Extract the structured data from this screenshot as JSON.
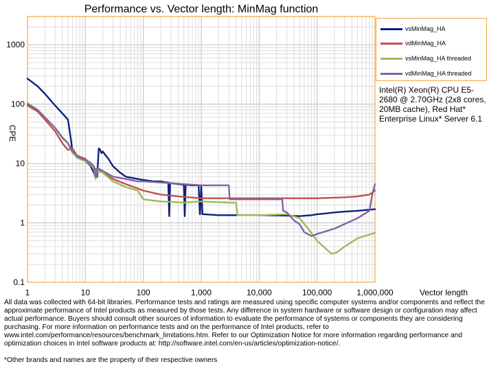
{
  "chart_data": {
    "type": "line",
    "title": "Performance vs. Vector length: MinMag function",
    "xlabel": "Vector length",
    "ylabel": "CPE",
    "xscale": "log",
    "yscale": "log",
    "xlim": [
      1,
      1000000
    ],
    "ylim": [
      0.1,
      3000
    ],
    "grid": true,
    "legend_position": "top-right",
    "x_ticks": [
      "1",
      "10",
      "100",
      "1,000",
      "10,000",
      "100,000",
      "1,000,000"
    ],
    "y_ticks": [
      "0.1",
      "1",
      "10",
      "100",
      "1000"
    ],
    "series": [
      {
        "name": "vsMinMag_HA",
        "color": "#0d1e7e",
        "points": [
          [
            1,
            270
          ],
          [
            1.5,
            200
          ],
          [
            2,
            150
          ],
          [
            3,
            95
          ],
          [
            4,
            70
          ],
          [
            5,
            55
          ],
          [
            5.5,
            30
          ],
          [
            6,
            16
          ],
          [
            7,
            13
          ],
          [
            8,
            12
          ],
          [
            9,
            11.5
          ],
          [
            10,
            11
          ],
          [
            12,
            9.5
          ],
          [
            14,
            7
          ],
          [
            15,
            5.8
          ],
          [
            16,
            6
          ],
          [
            17,
            18
          ],
          [
            18,
            17
          ],
          [
            19,
            15
          ],
          [
            20,
            16
          ],
          [
            22,
            14
          ],
          [
            25,
            12
          ],
          [
            30,
            9
          ],
          [
            40,
            7
          ],
          [
            50,
            6
          ],
          [
            60,
            5.8
          ],
          [
            80,
            5.5
          ],
          [
            100,
            5.3
          ],
          [
            150,
            5
          ],
          [
            200,
            5
          ],
          [
            250,
            4.8
          ],
          [
            270,
            4.8
          ],
          [
            280,
            1.3
          ],
          [
            290,
            4.7
          ],
          [
            400,
            4.5
          ],
          [
            500,
            4.4
          ],
          [
            520,
            1.3
          ],
          [
            540,
            4.4
          ],
          [
            700,
            4.3
          ],
          [
            900,
            4.3
          ],
          [
            950,
            1.4
          ],
          [
            1000,
            4.2
          ],
          [
            1050,
            1.4
          ],
          [
            1100,
            1.4
          ],
          [
            2000,
            1.35
          ],
          [
            5000,
            1.35
          ],
          [
            10000,
            1.35
          ],
          [
            30000,
            1.33
          ],
          [
            50000,
            1.3
          ],
          [
            80000,
            1.35
          ],
          [
            100000,
            1.4
          ],
          [
            150000,
            1.45
          ],
          [
            200000,
            1.5
          ],
          [
            300000,
            1.55
          ],
          [
            500000,
            1.6
          ],
          [
            1000000,
            1.7
          ]
        ]
      },
      {
        "name": "vdMinMag_HA",
        "color": "#c0504d",
        "points": [
          [
            1,
            95
          ],
          [
            1.5,
            75
          ],
          [
            2,
            55
          ],
          [
            3,
            35
          ],
          [
            4,
            22
          ],
          [
            5,
            17
          ],
          [
            6,
            18
          ],
          [
            7,
            14
          ],
          [
            8,
            13
          ],
          [
            10,
            12
          ],
          [
            12,
            10
          ],
          [
            15,
            8
          ],
          [
            20,
            7
          ],
          [
            30,
            5.5
          ],
          [
            50,
            4.5
          ],
          [
            100,
            3.5
          ],
          [
            200,
            3
          ],
          [
            400,
            2.8
          ],
          [
            1000,
            2.6
          ],
          [
            3000,
            2.6
          ],
          [
            10000,
            2.6
          ],
          [
            30000,
            2.6
          ],
          [
            100000,
            2.6
          ],
          [
            300000,
            2.7
          ],
          [
            500000,
            2.8
          ],
          [
            800000,
            3
          ],
          [
            1000000,
            3.5
          ]
        ]
      },
      {
        "name": "vsMinMag_HA threaded",
        "color": "#9bbb59",
        "points": [
          [
            1,
            105
          ],
          [
            1.5,
            80
          ],
          [
            2,
            60
          ],
          [
            3,
            40
          ],
          [
            4,
            28
          ],
          [
            5,
            22
          ],
          [
            6,
            15
          ],
          [
            8,
            12
          ],
          [
            10,
            11
          ],
          [
            12,
            10
          ],
          [
            14,
            8
          ],
          [
            15,
            5.5
          ],
          [
            16,
            7.5
          ],
          [
            20,
            7
          ],
          [
            30,
            5
          ],
          [
            50,
            4
          ],
          [
            80,
            3.5
          ],
          [
            100,
            2.5
          ],
          [
            200,
            2.3
          ],
          [
            500,
            2.2
          ],
          [
            1000,
            2.3
          ],
          [
            3000,
            2.2
          ],
          [
            4000,
            2.2
          ],
          [
            4200,
            1.35
          ],
          [
            10000,
            1.35
          ],
          [
            30000,
            1.4
          ],
          [
            50000,
            1.2
          ],
          [
            70000,
            0.8
          ],
          [
            100000,
            0.5
          ],
          [
            150000,
            0.35
          ],
          [
            180000,
            0.3
          ],
          [
            220000,
            0.32
          ],
          [
            300000,
            0.4
          ],
          [
            500000,
            0.55
          ],
          [
            1000000,
            0.68
          ]
        ]
      },
      {
        "name": "vdMinMag_HA threaded",
        "color": "#8064a2",
        "points": [
          [
            1,
            100
          ],
          [
            1.5,
            80
          ],
          [
            2,
            60
          ],
          [
            3,
            40
          ],
          [
            4,
            27
          ],
          [
            5,
            22
          ],
          [
            6,
            16
          ],
          [
            8,
            12.5
          ],
          [
            10,
            11.5
          ],
          [
            12,
            10.5
          ],
          [
            14,
            9
          ],
          [
            15,
            6
          ],
          [
            16,
            8.5
          ],
          [
            20,
            7.5
          ],
          [
            30,
            6
          ],
          [
            50,
            5.5
          ],
          [
            80,
            5
          ],
          [
            100,
            5
          ],
          [
            200,
            4.8
          ],
          [
            500,
            4.5
          ],
          [
            1000,
            4.3
          ],
          [
            2000,
            4.3
          ],
          [
            3000,
            4.3
          ],
          [
            3100,
            2.5
          ],
          [
            10000,
            2.5
          ],
          [
            20000,
            2.5
          ],
          [
            25000,
            2.5
          ],
          [
            26000,
            1.6
          ],
          [
            30000,
            1.5
          ],
          [
            40000,
            1.1
          ],
          [
            50000,
            0.95
          ],
          [
            60000,
            0.7
          ],
          [
            80000,
            0.6
          ],
          [
            100000,
            0.65
          ],
          [
            200000,
            0.8
          ],
          [
            500000,
            1.2
          ],
          [
            800000,
            1.6
          ],
          [
            900000,
            3
          ],
          [
            1000000,
            4.5
          ]
        ]
      }
    ]
  },
  "sysinfo": "Intel(R) Xeon(R) CPU E5-2680 @ 2.70GHz (2x8 cores, 20MB cache), Red Hat* Enterprise Linux* Server 6.1",
  "disclaimer": "All data was collected with 64-bit libraries. Performance tests and ratings are measured using specific computer systems and/or components and reflect the approximate performance of Intel products as measured by those tests. Any difference in system hardware or software design or configuration may affect actual performance. Buyers should consult other sources of information to evaluate the performance of systems or components they are considering purchasing. For more information on performance tests and on the performance of Intel products, refer to www.intel.com/performance/resources/benchmark_limitations.htm. Refer to our Optimization Notice for more information regarding performance and optimization choices in Intel software products at: http://software.intel.com/en-us/articles/optimization-notice/.",
  "footnote": "*Other brands and names are the property of their respective owners"
}
